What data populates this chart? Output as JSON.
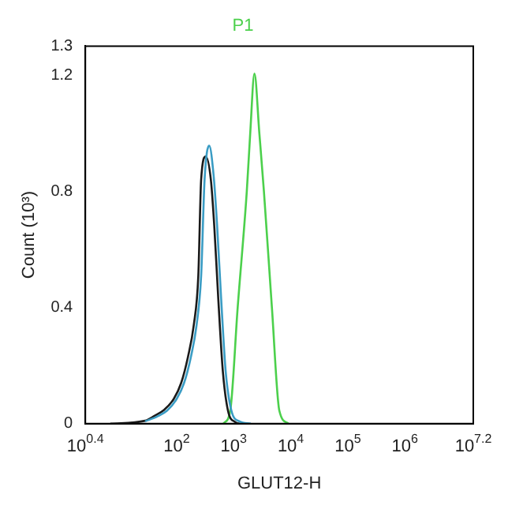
{
  "chart_data": {
    "type": "line",
    "title": "P1",
    "xlabel": "GLUT12-H",
    "ylabel": "Count (10³)",
    "log": "x",
    "xlim": [
      2.512,
      15850000
    ],
    "xticks": [
      {
        "value": 2.512,
        "label": "10$^{0.4}$"
      },
      {
        "value": 100,
        "label": "10$^{2}$"
      },
      {
        "value": 1000,
        "label": "10$^{3}$"
      },
      {
        "value": 10000,
        "label": "10$^{4}$"
      },
      {
        "value": 100000,
        "label": "10$^{5}$"
      },
      {
        "value": 1000000,
        "label": "10$^{6}$"
      },
      {
        "value": 15850000,
        "label": "10$^{7.2}$"
      }
    ],
    "ylim": [
      0,
      1.3
    ],
    "yticks": [
      0,
      0.4,
      0.8,
      1.2,
      1.3
    ],
    "grid": false,
    "legend": false,
    "marker": "none",
    "line_style": "solid",
    "series": [
      {
        "color": "#3a9cc4",
        "x": [
          28,
          46,
          68,
          100,
          135,
          178,
          224,
          269,
          309,
          372,
          447,
          513,
          603,
          724,
          912,
          1259,
          1995
        ],
        "values": [
          0.008,
          0.025,
          0.045,
          0.085,
          0.14,
          0.23,
          0.34,
          0.51,
          0.84,
          0.957,
          0.85,
          0.68,
          0.43,
          0.18,
          0.045,
          0.008,
          0
        ]
      },
      {
        "color": "#1a1a1a",
        "x": [
          6.9,
          28,
          41,
          60,
          89,
          120,
          158,
          200,
          240,
          269,
          324,
          398,
          457,
          537,
          646,
          794,
          1072,
          1259
        ],
        "values": [
          0,
          0.01,
          0.027,
          0.047,
          0.085,
          0.14,
          0.23,
          0.34,
          0.51,
          0.84,
          0.92,
          0.84,
          0.68,
          0.43,
          0.18,
          0.045,
          0.005,
          0
        ]
      },
      {
        "color": "#4cd04c",
        "x": [
          661,
          871,
          1175,
          1698,
          1950,
          2312,
          2818,
          3388,
          4677,
          6310,
          9120
        ],
        "values": [
          0,
          0.045,
          0.4,
          0.8,
          1.0,
          1.205,
          1.0,
          0.8,
          0.4,
          0.045,
          0
        ]
      }
    ]
  }
}
